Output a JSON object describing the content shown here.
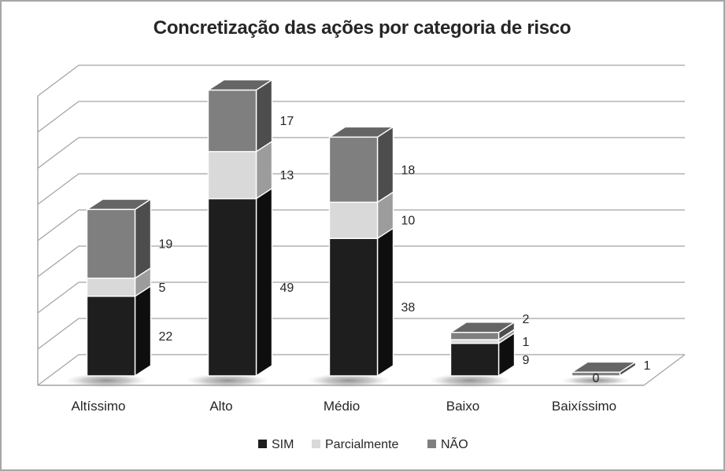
{
  "title": "Concretização das ações por categoria de risco",
  "chart_data": {
    "type": "bar",
    "subtype": "3d-stacked-column",
    "title": "Concretização das ações por categoria de risco",
    "categories": [
      "Altíssimo",
      "Alto",
      "Médio",
      "Baixo",
      "Baixíssimo"
    ],
    "series": [
      {
        "name": "SIM",
        "values": [
          22,
          49,
          38,
          9,
          0
        ],
        "labels": [
          "22",
          "49",
          "38",
          "9",
          "0"
        ],
        "color": "#1e1e1e",
        "color_side": "#0e0e0e",
        "color_top": "#3f3f3f"
      },
      {
        "name": "Parcialmente",
        "values": [
          5,
          13,
          10,
          1,
          0
        ],
        "labels": [
          "5",
          "13",
          "10",
          "1",
          ""
        ],
        "color": "#d9d9d9",
        "color_side": "#9c9c9c",
        "color_top": "#ebebeb"
      },
      {
        "name": "NÃO",
        "values": [
          19,
          17,
          18,
          2,
          1
        ],
        "labels": [
          "19",
          "17",
          "18",
          "2",
          "1"
        ],
        "color": "#7f7f7f",
        "color_side": "#4d4d4d",
        "color_top": "#656565"
      }
    ],
    "ylim": [
      0,
      80
    ],
    "grid_interval": 10,
    "gridlines_count": 9,
    "y_axis_tick_labels_shown": false,
    "data_labels_shown": true,
    "legend_position": "bottom",
    "grid_color": "#a3a3a3",
    "text_color": "#262626",
    "border_color": "#a6a6a6",
    "background_color": "#ffffff"
  },
  "legend": {
    "items": [
      {
        "label": "SIM"
      },
      {
        "label": "Parcialmente"
      },
      {
        "label": "NÃO"
      }
    ]
  }
}
